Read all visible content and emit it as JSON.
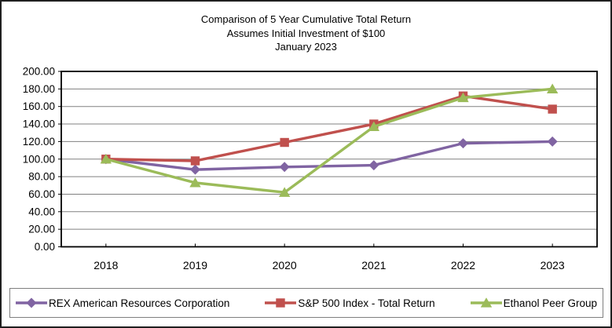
{
  "title": {
    "line1": "Comparison of 5 Year Cumulative Total Return",
    "line2": "Assumes Initial Investment of $100",
    "line3": "January 2023"
  },
  "chart_data": {
    "type": "line",
    "categories": [
      "2018",
      "2019",
      "2020",
      "2021",
      "2022",
      "2023"
    ],
    "series": [
      {
        "name": "REX American Resources Corporation",
        "values": [
          100,
          88,
          91,
          93,
          118,
          120
        ],
        "color": "#8064A2",
        "marker": "diamond"
      },
      {
        "name": "S&P 500 Index - Total Return",
        "values": [
          100,
          98,
          119,
          140,
          172,
          157
        ],
        "color": "#C0504D",
        "marker": "square"
      },
      {
        "name": "Ethanol Peer Group",
        "values": [
          100,
          73,
          62,
          137,
          170,
          180
        ],
        "color": "#9BBB59",
        "marker": "triangle"
      }
    ],
    "ylim": [
      0,
      200
    ],
    "ytick_step": 20,
    "ytick_labels": [
      "200.00",
      "180.00",
      "160.00",
      "140.00",
      "120.00",
      "100.00",
      "80.00",
      "60.00",
      "40.00",
      "20.00",
      "0.00"
    ],
    "grid": true,
    "legend_position": "bottom",
    "colors": {
      "gridline": "#808080",
      "axis_border": "#000000",
      "plot_background": "#FFFFFF"
    }
  }
}
